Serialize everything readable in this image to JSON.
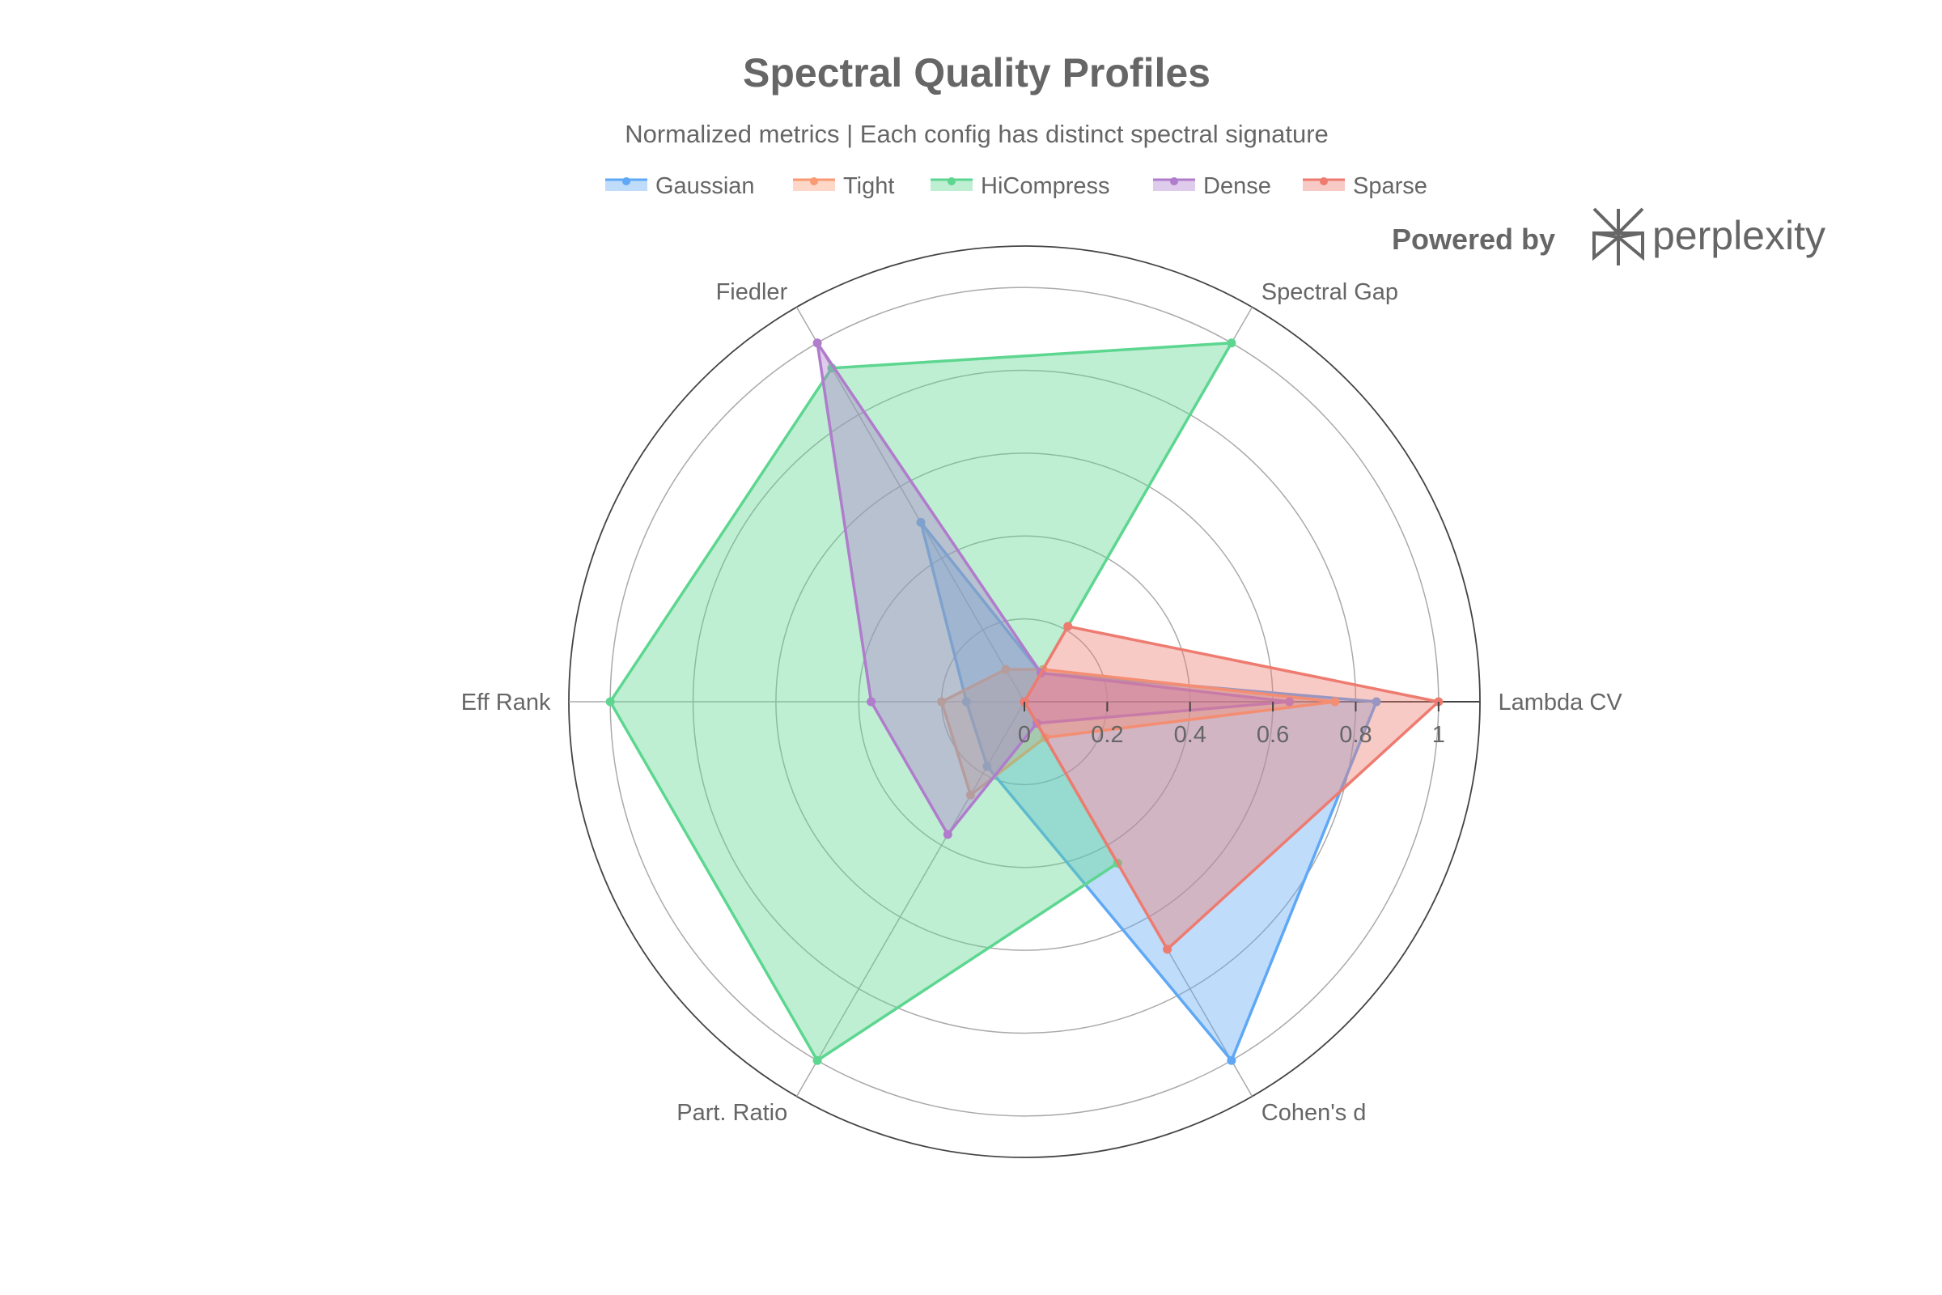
{
  "chart_data": {
    "type": "radar",
    "title": "Spectral Quality Profiles",
    "subtitle": "Normalized metrics | Each config has distinct spectral signature",
    "axes": [
      "Lambda CV",
      "Spectral Gap",
      "Fiedler",
      "Eff Rank",
      "Part. Ratio",
      "Cohen's d"
    ],
    "radial_range": [
      0,
      1.1
    ],
    "radial_ticks": [
      "0",
      "0.2",
      "0.4",
      "0.6",
      "0.8",
      "1"
    ],
    "radial_tick_values": [
      0,
      0.2,
      0.4,
      0.6,
      0.8,
      1
    ],
    "grid": true,
    "legend_placement": "top",
    "series": [
      {
        "name": "Gaussian",
        "color": "#5fa8f5",
        "values": [
          0.85,
          0.08,
          0.5,
          0.14,
          0.18,
          1.0
        ]
      },
      {
        "name": "Tight",
        "color": "#f99a73",
        "values": [
          0.75,
          0.09,
          0.09,
          0.2,
          0.26,
          0.1
        ]
      },
      {
        "name": "HiCompress",
        "color": "#5dd690",
        "values": [
          0.0,
          1.0,
          0.93,
          1.0,
          1.0,
          0.45
        ]
      },
      {
        "name": "Dense",
        "color": "#b07ccc",
        "values": [
          0.64,
          0.08,
          1.0,
          0.37,
          0.37,
          0.06
        ]
      },
      {
        "name": "Sparse",
        "color": "#ee7b70",
        "values": [
          1.0,
          0.21,
          0.0,
          0.0,
          0.0,
          0.69
        ]
      }
    ]
  },
  "branding": {
    "powered_by": "Powered by",
    "brand": "perplexity"
  }
}
